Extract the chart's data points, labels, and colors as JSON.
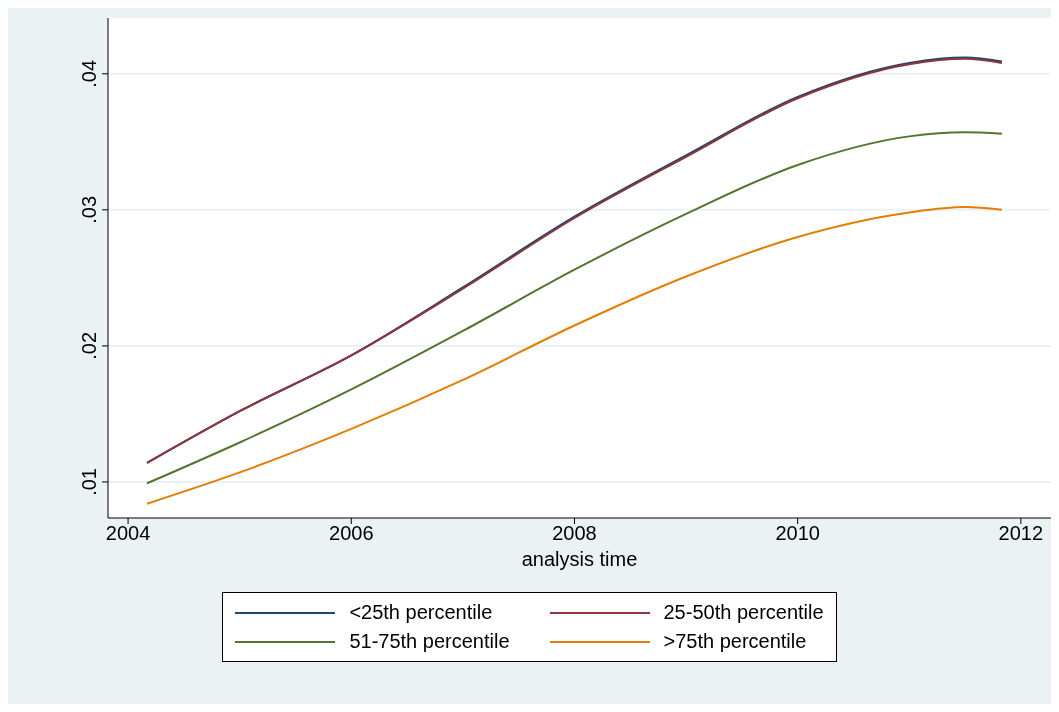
{
  "chart_data": {
    "type": "line",
    "xlabel": "analysis time",
    "x": [
      2004.17,
      2005,
      2006,
      2007,
      2008,
      2009,
      2010,
      2011,
      2011.5,
      2011.83
    ],
    "series": [
      {
        "name": "<25th percentile",
        "color": "#1a476f",
        "values": [
          0.0114,
          0.0152,
          0.0193,
          0.0243,
          0.0295,
          0.034,
          0.0383,
          0.0408,
          0.0412,
          0.0409
        ]
      },
      {
        "name": "25-50th percentile",
        "color": "#90353b",
        "values": [
          0.0114,
          0.0152,
          0.0193,
          0.0242,
          0.0294,
          0.0339,
          0.0382,
          0.0407,
          0.0411,
          0.0408
        ]
      },
      {
        "name": "51-75th percentile",
        "color": "#55752f",
        "values": [
          0.0099,
          0.0129,
          0.0168,
          0.0211,
          0.0256,
          0.0297,
          0.0333,
          0.0354,
          0.0357,
          0.0356
        ]
      },
      {
        "name": ">75th percentile",
        "color": "#e37e00",
        "values": [
          0.0084,
          0.0107,
          0.0139,
          0.0175,
          0.0215,
          0.0251,
          0.028,
          0.0298,
          0.0302,
          0.03
        ]
      }
    ],
    "xlim": [
      2003.82,
      2012.27
    ],
    "xticks": [
      2004,
      2006,
      2008,
      2010,
      2012
    ],
    "ylim": [
      0.00735,
      0.0441
    ],
    "yticks": [
      {
        "value": 0.01,
        "label": ".01"
      },
      {
        "value": 0.02,
        "label": ".02"
      },
      {
        "value": 0.03,
        "label": ".03"
      },
      {
        "value": 0.04,
        "label": ".04"
      }
    ],
    "grid": "y",
    "legend": "bottom",
    "marker": "none",
    "line_style": "solid"
  }
}
